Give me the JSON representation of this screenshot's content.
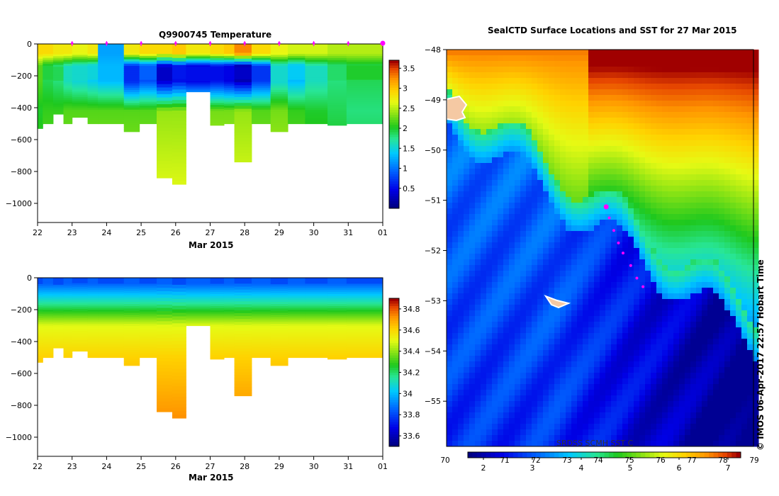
{
  "colors": {
    "background": "#ffffff",
    "seal_marker": "#ff00ff",
    "land": "#f5c9a3",
    "axis": "#000000"
  },
  "temperature_panel": {
    "title": "Q9900745  Temperature",
    "xlabel": "Mar 2015"
  },
  "salinity_panel": {
    "title": "",
    "xlabel": "Mar 2015"
  },
  "map_panel": {
    "title": "SealCTD Surface Locations and SST for 27 Mar 2015",
    "colorbar_caption": "SRDSS SCMH SST C",
    "credit": "© IMOS 06-Apr-2017 22:57 Hobart Time"
  },
  "chart_data": [
    {
      "id": "temperature",
      "type": "heatmap",
      "title": "Q9900745  Temperature",
      "xlabel": "Mar 2015",
      "ylabel": "",
      "x_ticks": [
        "22",
        "23",
        "24",
        "25",
        "26",
        "27",
        "28",
        "29",
        "30",
        "31",
        "01"
      ],
      "xlim": [
        22,
        32
      ],
      "y_ticks": [
        0,
        -200,
        -400,
        -600,
        -800,
        -1000
      ],
      "ylim": [
        -1120,
        0
      ],
      "colorbar": {
        "min": 0,
        "max": 3.7,
        "ticks": [
          0.5,
          1,
          1.5,
          2,
          2.5,
          3,
          3.5
        ],
        "palette": "jet"
      },
      "profile_markers_day": [
        23,
        24,
        25,
        26,
        27,
        28,
        29,
        30,
        31,
        32
      ],
      "profiles": [
        {
          "start": 22.0,
          "end": 22.15,
          "maxdepth": 530,
          "surface": 2.9,
          "thermocline": 2.2,
          "deep": 2.0
        },
        {
          "start": 22.15,
          "end": 22.45,
          "maxdepth": 500,
          "surface": 2.9,
          "thermocline": 1.9,
          "deep": 2.1
        },
        {
          "start": 22.45,
          "end": 22.75,
          "maxdepth": 440,
          "surface": 2.8,
          "thermocline": 1.8,
          "deep": 2.1
        },
        {
          "start": 22.75,
          "end": 23.0,
          "maxdepth": 500,
          "surface": 2.8,
          "thermocline": 1.6,
          "deep": 2.2
        },
        {
          "start": 23.0,
          "end": 23.45,
          "maxdepth": 460,
          "surface": 2.7,
          "thermocline": 1.5,
          "deep": 2.2
        },
        {
          "start": 23.45,
          "end": 23.75,
          "maxdepth": 500,
          "surface": 2.8,
          "thermocline": 1.4,
          "deep": 2.2
        },
        {
          "start": 23.75,
          "end": 24.5,
          "maxdepth": 500,
          "surface": 1.2,
          "thermocline": 1.3,
          "deep": 2.2
        },
        {
          "start": 24.5,
          "end": 24.95,
          "maxdepth": 550,
          "surface": 2.8,
          "thermocline": 0.6,
          "deep": 2.2
        },
        {
          "start": 24.95,
          "end": 25.45,
          "maxdepth": 500,
          "surface": 2.9,
          "thermocline": 0.8,
          "deep": 2.2
        },
        {
          "start": 25.45,
          "end": 25.9,
          "maxdepth": 840,
          "surface": 2.9,
          "thermocline": 0.3,
          "deep": 2.4
        },
        {
          "start": 25.9,
          "end": 26.3,
          "maxdepth": 880,
          "surface": 3.0,
          "thermocline": 0.5,
          "deep": 2.4
        },
        {
          "start": 26.3,
          "end": 27.0,
          "maxdepth": 300,
          "surface": 2.8,
          "thermocline": 0.4,
          "deep": 2.3
        },
        {
          "start": 27.0,
          "end": 27.4,
          "maxdepth": 510,
          "surface": 2.9,
          "thermocline": 0.5,
          "deep": 2.3
        },
        {
          "start": 27.4,
          "end": 27.7,
          "maxdepth": 500,
          "surface": 3.0,
          "thermocline": 0.4,
          "deep": 2.3
        },
        {
          "start": 27.7,
          "end": 28.2,
          "maxdepth": 740,
          "surface": 3.3,
          "thermocline": 0.2,
          "deep": 2.4
        },
        {
          "start": 28.2,
          "end": 28.75,
          "maxdepth": 500,
          "surface": 2.9,
          "thermocline": 0.7,
          "deep": 2.2
        },
        {
          "start": 28.75,
          "end": 29.25,
          "maxdepth": 550,
          "surface": 2.7,
          "thermocline": 1.5,
          "deep": 2.3
        },
        {
          "start": 29.25,
          "end": 29.75,
          "maxdepth": 500,
          "surface": 2.6,
          "thermocline": 1.3,
          "deep": 2.1
        },
        {
          "start": 29.75,
          "end": 30.4,
          "maxdepth": 500,
          "surface": 2.6,
          "thermocline": 1.6,
          "deep": 2.0
        },
        {
          "start": 30.4,
          "end": 30.95,
          "maxdepth": 510,
          "surface": 2.5,
          "thermocline": 1.8,
          "deep": 1.9
        },
        {
          "start": 30.95,
          "end": 32.0,
          "maxdepth": 500,
          "surface": 2.5,
          "thermocline": 1.9,
          "deep": 1.8
        }
      ]
    },
    {
      "id": "salinity",
      "type": "heatmap",
      "title": "",
      "xlabel": "Mar 2015",
      "ylabel": "",
      "x_ticks": [
        "22",
        "23",
        "24",
        "25",
        "26",
        "27",
        "28",
        "29",
        "30",
        "31",
        "01"
      ],
      "xlim": [
        22,
        32
      ],
      "y_ticks": [
        0,
        -200,
        -400,
        -600,
        -800,
        -1000
      ],
      "ylim": [
        -1120,
        0
      ],
      "colorbar": {
        "min": 33.5,
        "max": 34.9,
        "ticks": [
          33.6,
          33.8,
          34,
          34.2,
          34.4,
          34.6,
          34.8
        ],
        "palette": "jet"
      },
      "surface_salinity": 33.85,
      "halocline_salinity": 34.2,
      "deep_salinity": 34.62,
      "bottom_salinity": 34.74
    },
    {
      "id": "sst_map",
      "type": "heatmap",
      "title": "SealCTD Surface Locations and SST for 27 Mar 2015",
      "xlabel": "",
      "ylabel": "",
      "y_ticks": [
        -48,
        -49,
        -50,
        -51,
        -52,
        -53,
        -54,
        -55
      ],
      "ylim": [
        -55.9,
        -48.0
      ],
      "colorbar": {
        "label": "SRDSS SCMH SST C",
        "celsius_ticks": [
          2,
          3,
          4,
          5,
          6,
          7
        ],
        "fahrenheit_ticks": [
          70,
          71,
          72,
          73,
          74,
          75,
          76,
          77,
          78,
          79
        ],
        "palette": "jet"
      },
      "seal_track": [
        {
          "lon_frac": 0.52,
          "lat": -51.13,
          "big": true
        },
        {
          "lon_frac": 0.53,
          "lat": -51.35,
          "big": false
        },
        {
          "lon_frac": 0.545,
          "lat": -51.6,
          "big": false
        },
        {
          "lon_frac": 0.56,
          "lat": -51.85,
          "big": false
        },
        {
          "lon_frac": 0.575,
          "lat": -52.05,
          "big": false
        },
        {
          "lon_frac": 0.6,
          "lat": -52.3,
          "big": false
        },
        {
          "lon_frac": 0.62,
          "lat": -52.55,
          "big": false
        },
        {
          "lon_frac": 0.64,
          "lat": -52.72,
          "big": false
        }
      ]
    }
  ]
}
